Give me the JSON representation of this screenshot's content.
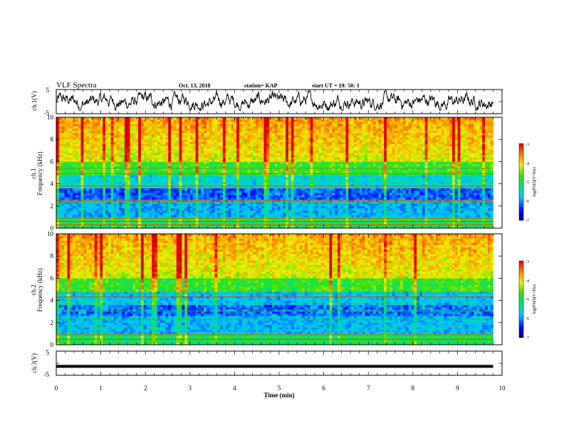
{
  "header": {
    "title": "VLF Spectra",
    "date": "Oct. 13, 2018",
    "station": "station= KAP",
    "start": "start  UT  =   19: 50: 1"
  },
  "colors": {
    "low": "#1a00d0",
    "mid_low": "#00d8e8",
    "mid": "#30d040",
    "mid_high": "#f0f000",
    "high": "#e83020",
    "trace": "#000000"
  },
  "chart_data": [
    {
      "type": "line",
      "panel": "ch1-waveform",
      "ylabel": "ch.1(V)",
      "ylim": [
        -5,
        5
      ],
      "yticks": [
        "5",
        "-5"
      ],
      "xlim": [
        0,
        10
      ],
      "description_values": "noisy broadband waveform, roughly -3 to +4 V"
    },
    {
      "type": "heatmap",
      "panel": "ch1-spectrogram",
      "ylabel": "ch.1\nFrequency  (kHz)",
      "ylim": [
        0,
        10
      ],
      "yticks": [
        "0",
        "2",
        "4",
        "6",
        "8",
        "10"
      ],
      "xlim": [
        0,
        9.8
      ],
      "colorbar": {
        "label": "log(PSD)(V²/Hz)",
        "ticks": [
          "-3",
          "-4",
          "-5",
          "-6",
          "-7"
        ],
        "range": [
          -7,
          -3
        ]
      }
    },
    {
      "type": "heatmap",
      "panel": "ch2-spectrogram",
      "ylabel": "ch.2\nFrequency  (kHz)",
      "ylim": [
        0,
        10
      ],
      "yticks": [
        "0",
        "2",
        "4",
        "6",
        "8",
        "10"
      ],
      "xlim": [
        0,
        9.8
      ],
      "colorbar": {
        "label": "log(PSD)(V²/Hz)",
        "ticks": [
          "-3",
          "-4",
          "-5",
          "-6",
          "-7"
        ],
        "range": [
          -7,
          -3
        ]
      }
    },
    {
      "type": "line",
      "panel": "ch3-waveform",
      "ylabel": "ch.3(V)",
      "ylim": [
        -5,
        5
      ],
      "yticks": [
        "5",
        "-5"
      ],
      "xlim": [
        0,
        10
      ],
      "x": [
        0,
        9.8
      ],
      "y": [
        -1.3,
        -1.3
      ]
    }
  ],
  "x_axis": {
    "label": "Time  (min)",
    "ticks": [
      "0",
      "1",
      "2",
      "3",
      "4",
      "5",
      "6",
      "7",
      "8",
      "9",
      "10"
    ]
  },
  "colorbar1": {
    "label": "log(PSD)(V²/Hz)",
    "t0": "-3",
    "t1": "-4",
    "t2": "-5",
    "t3": "-6",
    "t4": "-7"
  },
  "colorbar2": {
    "label": "log(PSD)(V²/Hz)",
    "t0": "-3",
    "t1": "-4",
    "t2": "-5",
    "t3": "-6",
    "t4": "-7"
  },
  "ylabels": {
    "ch1_wave": "ch.1(V)",
    "ch1_spec_a": "ch.1",
    "ch1_spec_b": "Frequency  (kHz)",
    "ch2_spec_a": "ch.2",
    "ch2_spec_b": "Frequency  (kHz)",
    "ch3_wave": "ch.3(V)"
  },
  "wave_ticks": {
    "top": "5",
    "bottom": "-5"
  },
  "spec_ticks": [
    "0",
    "2",
    "4",
    "6",
    "8",
    "10"
  ]
}
